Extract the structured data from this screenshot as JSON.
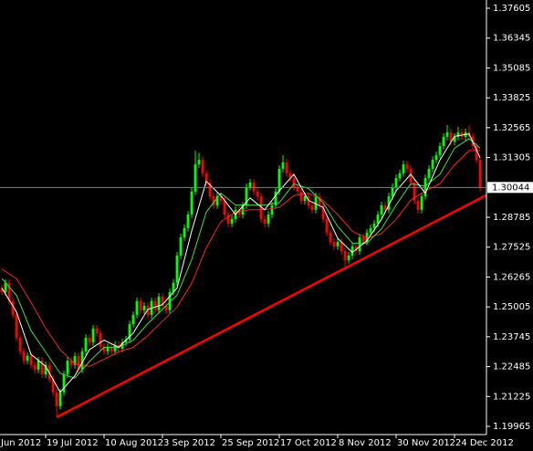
{
  "chart_data": {
    "type": "candlestick",
    "ylim": [
      1.19618,
      1.37952
    ],
    "yticks": [
      1.37605,
      1.36345,
      1.35085,
      1.33825,
      1.32565,
      1.31305,
      1.28785,
      1.27525,
      1.26265,
      1.25005,
      1.23745,
      1.22485,
      1.21225,
      1.19965
    ],
    "xlim": [
      -0.5,
      132.75
    ],
    "xticks": [
      {
        "value": -4,
        "label": "Jun 2012"
      },
      {
        "value": 12,
        "label": "19 Jul 2012"
      },
      {
        "value": 28,
        "label": "10 Aug 2012"
      },
      {
        "value": 44,
        "label": "3 Sep 2012"
      },
      {
        "value": 60,
        "label": "25 Sep 2012"
      },
      {
        "value": 76,
        "label": "17 Oct 2012"
      },
      {
        "value": 92,
        "label": "8 Nov 2012"
      },
      {
        "value": 108,
        "label": "30 Nov 2012"
      },
      {
        "value": 124,
        "label": "24 Dec 2012"
      }
    ],
    "up_color": "#00ff00",
    "down_color": "#ff0000",
    "open": [
      1.258,
      1.2563,
      1.2602,
      1.2525,
      1.2467,
      1.237,
      1.2313,
      1.2274,
      1.2293,
      1.2255,
      1.2236,
      1.2274,
      1.2216,
      1.2255,
      1.2197,
      1.214,
      1.2082,
      1.214,
      1.2216,
      1.2274,
      1.2255,
      1.2293,
      1.2236,
      1.2313,
      1.237,
      1.2351,
      1.2409,
      1.239,
      1.2332,
      1.2313,
      1.2332,
      1.2313,
      1.234,
      1.2324,
      1.2351,
      1.2363,
      1.2428,
      1.2467,
      1.2525,
      1.2486,
      1.2505,
      1.2467,
      1.2525,
      1.2486,
      1.2544,
      1.2505,
      1.2486,
      1.2563,
      1.2602,
      1.2717,
      1.2794,
      1.2833,
      1.289,
      1.2987,
      1.3102,
      1.3121,
      1.3064,
      1.3025,
      1.2967,
      1.2929,
      1.2967,
      1.2948,
      1.289,
      1.2852,
      1.2871,
      1.291,
      1.289,
      1.2929,
      1.3006,
      1.3025,
      1.2987,
      1.2967,
      1.2871,
      1.2852,
      1.289,
      1.2929,
      1.2987,
      1.3083,
      1.311,
      1.3064,
      1.3044,
      1.3006,
      1.2987,
      1.2948,
      1.2967,
      1.2929,
      1.291,
      1.2967,
      1.2929,
      1.2871,
      1.2814,
      1.2775,
      1.2756,
      1.2775,
      1.2736,
      1.2698,
      1.2717,
      1.2756,
      1.2736,
      1.2794,
      1.2775,
      1.2814,
      1.2833,
      1.2852,
      1.289,
      1.2929,
      1.291,
      1.2967,
      1.3006,
      1.3044,
      1.3064,
      1.3102,
      1.3083,
      1.3025,
      1.2948,
      1.291,
      1.2967,
      1.3044,
      1.3083,
      1.3121,
      1.3141,
      1.3179,
      1.3218,
      1.3237,
      1.3198,
      1.3218,
      1.3237,
      1.3218,
      1.3237,
      1.3218,
      1.3179,
      1.3121
    ],
    "high": [
      1.2595,
      1.2617,
      1.2617,
      1.254,
      1.2482,
      1.2385,
      1.2328,
      1.2308,
      1.2308,
      1.227,
      1.2289,
      1.2289,
      1.227,
      1.227,
      1.2212,
      1.2155,
      1.2155,
      1.2231,
      1.2289,
      1.2289,
      1.2308,
      1.2308,
      1.2328,
      1.2385,
      1.2385,
      1.2424,
      1.2424,
      1.2405,
      1.2347,
      1.2347,
      1.2347,
      1.2355,
      1.2355,
      1.2366,
      1.2378,
      1.2443,
      1.2482,
      1.254,
      1.254,
      1.252,
      1.252,
      1.254,
      1.254,
      1.2559,
      1.2559,
      1.252,
      1.2578,
      1.2617,
      1.2732,
      1.2809,
      1.2848,
      1.2905,
      1.3002,
      1.316,
      1.315,
      1.3136,
      1.3079,
      1.304,
      1.2982,
      1.2982,
      1.2982,
      1.2963,
      1.2905,
      1.2886,
      1.2925,
      1.2925,
      1.2944,
      1.3021,
      1.304,
      1.304,
      1.3002,
      1.2982,
      1.2886,
      1.2905,
      1.2944,
      1.3002,
      1.3098,
      1.314,
      1.3125,
      1.3079,
      1.3059,
      1.3021,
      1.3002,
      1.2982,
      1.2982,
      1.2944,
      1.2982,
      1.2982,
      1.2944,
      1.2886,
      1.2829,
      1.279,
      1.279,
      1.279,
      1.2751,
      1.2732,
      1.2771,
      1.2771,
      1.2809,
      1.2809,
      1.2829,
      1.2848,
      1.2867,
      1.2905,
      1.2944,
      1.2944,
      1.2982,
      1.3021,
      1.3059,
      1.3079,
      1.3117,
      1.3117,
      1.3098,
      1.304,
      1.2963,
      1.2982,
      1.3059,
      1.3098,
      1.3136,
      1.3156,
      1.3194,
      1.3233,
      1.3268,
      1.3252,
      1.3233,
      1.326,
      1.3252,
      1.3252,
      1.3265,
      1.3233,
      1.3194,
      1.3136
    ],
    "low": [
      1.2548,
      1.2548,
      1.251,
      1.2452,
      1.2355,
      1.2298,
      1.2259,
      1.2259,
      1.224,
      1.2221,
      1.2221,
      1.2201,
      1.2201,
      1.2182,
      1.2125,
      1.2035,
      1.2067,
      1.2125,
      1.2201,
      1.224,
      1.224,
      1.2221,
      1.2221,
      1.2298,
      1.2336,
      1.2336,
      1.2375,
      1.2317,
      1.2298,
      1.2298,
      1.2298,
      1.2298,
      1.2309,
      1.2309,
      1.2336,
      1.2348,
      1.2413,
      1.2452,
      1.2471,
      1.2471,
      1.2452,
      1.2452,
      1.2471,
      1.2471,
      1.249,
      1.2471,
      1.2471,
      1.2548,
      1.2587,
      1.2702,
      1.2779,
      1.2818,
      1.2875,
      1.2972,
      1.3087,
      1.3049,
      1.301,
      1.2952,
      1.2914,
      1.2914,
      1.2933,
      1.2875,
      1.2837,
      1.2837,
      1.2856,
      1.2875,
      1.2875,
      1.2914,
      1.2991,
      1.2972,
      1.2952,
      1.2856,
      1.2837,
      1.2837,
      1.2875,
      1.2914,
      1.2972,
      1.3068,
      1.3049,
      1.3029,
      1.2991,
      1.2972,
      1.2933,
      1.2933,
      1.2914,
      1.2895,
      1.2895,
      1.2914,
      1.2856,
      1.2799,
      1.276,
      1.2741,
      1.2741,
      1.2721,
      1.267,
      1.2683,
      1.2702,
      1.2721,
      1.2721,
      1.276,
      1.276,
      1.2799,
      1.2818,
      1.2837,
      1.2875,
      1.2895,
      1.2895,
      1.2952,
      1.2991,
      1.3029,
      1.3049,
      1.3068,
      1.301,
      1.2933,
      1.2895,
      1.2895,
      1.2952,
      1.3029,
      1.3068,
      1.3106,
      1.3126,
      1.3164,
      1.3203,
      1.3183,
      1.3183,
      1.3203,
      1.3203,
      1.3203,
      1.3203,
      1.3164,
      1.3106,
      1.2989
    ],
    "close": [
      1.2563,
      1.2602,
      1.2525,
      1.2467,
      1.237,
      1.2313,
      1.2274,
      1.2293,
      1.2255,
      1.2236,
      1.2274,
      1.2216,
      1.2255,
      1.2197,
      1.214,
      1.2082,
      1.214,
      1.2216,
      1.2274,
      1.2255,
      1.2293,
      1.2236,
      1.2313,
      1.237,
      1.2351,
      1.2409,
      1.239,
      1.2332,
      1.2313,
      1.2332,
      1.2313,
      1.234,
      1.2324,
      1.2351,
      1.2363,
      1.2428,
      1.2467,
      1.2525,
      1.2486,
      1.2505,
      1.2467,
      1.2525,
      1.2486,
      1.2544,
      1.2505,
      1.2486,
      1.2563,
      1.2602,
      1.2717,
      1.2794,
      1.2833,
      1.289,
      1.2987,
      1.3102,
      1.3121,
      1.3064,
      1.3025,
      1.2967,
      1.2929,
      1.2967,
      1.2948,
      1.289,
      1.2852,
      1.2871,
      1.291,
      1.289,
      1.2929,
      1.3006,
      1.3025,
      1.2987,
      1.2967,
      1.2871,
      1.2852,
      1.289,
      1.2929,
      1.2987,
      1.3083,
      1.311,
      1.3064,
      1.3044,
      1.3006,
      1.2987,
      1.2948,
      1.2967,
      1.2929,
      1.291,
      1.2967,
      1.2929,
      1.2871,
      1.2814,
      1.2775,
      1.2756,
      1.2775,
      1.2736,
      1.2698,
      1.2717,
      1.2756,
      1.2736,
      1.2794,
      1.2775,
      1.2814,
      1.2833,
      1.2852,
      1.289,
      1.2929,
      1.291,
      1.2967,
      1.3006,
      1.3044,
      1.3064,
      1.3102,
      1.3083,
      1.3025,
      1.2948,
      1.291,
      1.2967,
      1.3044,
      1.3083,
      1.3121,
      1.3141,
      1.3179,
      1.3218,
      1.3237,
      1.3198,
      1.3218,
      1.3237,
      1.3218,
      1.3237,
      1.3218,
      1.3179,
      1.3121,
      1.3004
    ],
    "indicators": [
      {
        "color": "#ff2020",
        "x": [
          0,
          4,
          8,
          12,
          16,
          20,
          24,
          28,
          32,
          36,
          40,
          44,
          48,
          52,
          56,
          60,
          64,
          68,
          72,
          76,
          80,
          84,
          88,
          92,
          96,
          100,
          104,
          108,
          112,
          116,
          120,
          124,
          128,
          131
        ],
        "values": [
          1.266,
          1.262,
          1.252,
          1.241,
          1.232,
          1.226,
          1.225,
          1.228,
          1.231,
          1.233,
          1.238,
          1.244,
          1.25,
          1.26,
          1.275,
          1.286,
          1.29,
          1.291,
          1.291,
          1.292,
          1.297,
          1.298,
          1.295,
          1.289,
          1.282,
          1.279,
          1.281,
          1.287,
          1.295,
          1.299,
          1.302,
          1.31,
          1.316,
          1.316
        ]
      },
      {
        "color": "#40e040",
        "x": [
          0,
          4,
          8,
          12,
          16,
          20,
          24,
          28,
          32,
          36,
          40,
          44,
          48,
          52,
          56,
          60,
          64,
          68,
          72,
          76,
          80,
          84,
          88,
          92,
          96,
          100,
          104,
          108,
          112,
          116,
          120,
          124,
          128,
          131
        ],
        "values": [
          1.262,
          1.255,
          1.24,
          1.231,
          1.222,
          1.22,
          1.227,
          1.233,
          1.233,
          1.236,
          1.243,
          1.249,
          1.255,
          1.27,
          1.29,
          1.298,
          1.293,
          1.293,
          1.293,
          1.294,
          1.302,
          1.3,
          1.294,
          1.284,
          1.277,
          1.277,
          1.283,
          1.293,
          1.302,
          1.301,
          1.306,
          1.317,
          1.321,
          1.317
        ]
      },
      {
        "color": "#ffffff",
        "x": [
          0,
          4,
          8,
          12,
          16,
          20,
          24,
          28,
          32,
          36,
          40,
          44,
          48,
          52,
          56,
          60,
          64,
          68,
          72,
          76,
          80,
          84,
          88,
          92,
          96,
          100,
          104,
          108,
          112,
          116,
          120,
          124,
          128,
          131
        ],
        "values": [
          1.258,
          1.248,
          1.23,
          1.225,
          1.214,
          1.221,
          1.232,
          1.236,
          1.233,
          1.239,
          1.249,
          1.251,
          1.258,
          1.282,
          1.303,
          1.297,
          1.289,
          1.296,
          1.291,
          1.299,
          1.306,
          1.295,
          1.292,
          1.279,
          1.273,
          1.278,
          1.287,
          1.299,
          1.306,
          1.298,
          1.312,
          1.322,
          1.323,
          1.313
        ]
      }
    ],
    "trendline": {
      "color": "#ff0000",
      "x": [
        15,
        134.5
      ],
      "values": [
        1.2035,
        1.2986
      ]
    },
    "current_price": 1.30044,
    "current_price_color": "#808080"
  }
}
